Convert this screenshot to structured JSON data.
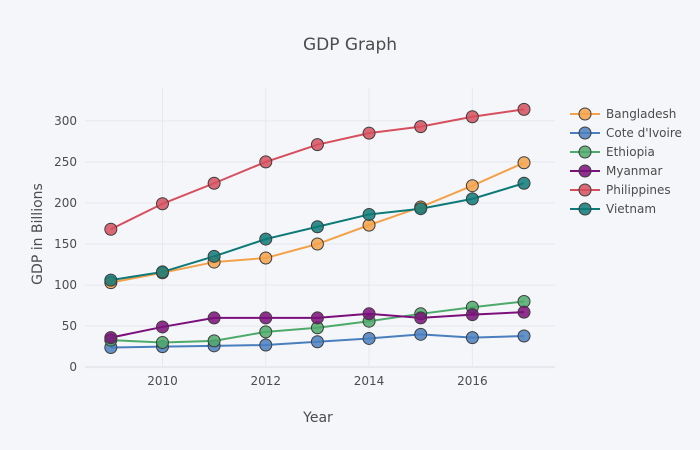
{
  "chart_data": {
    "type": "line",
    "title": "GDP Graph",
    "xlabel": "Year",
    "ylabel": "GDP in Billions",
    "xlim": [
      2008.5,
      2017.6
    ],
    "ylim": [
      -1,
      340
    ],
    "x_ticks": [
      2010,
      2012,
      2014,
      2016
    ],
    "y_ticks": [
      0,
      50,
      100,
      150,
      200,
      250,
      300
    ],
    "grid": true,
    "legend_position": "top-right",
    "x": [
      2009,
      2010,
      2011,
      2012,
      2013,
      2014,
      2015,
      2016,
      2017
    ],
    "series": [
      {
        "name": "Bangladesh",
        "color": "#f4a24a",
        "values": [
          103,
          115,
          128,
          133,
          150,
          173,
          195,
          221,
          249
        ]
      },
      {
        "name": "Cote d'Ivoire",
        "color": "#4a7fbf",
        "values": [
          24,
          25,
          26,
          27,
          31,
          35,
          40,
          36,
          38
        ]
      },
      {
        "name": "Ethiopia",
        "color": "#4daa6a",
        "values": [
          33,
          30,
          32,
          43,
          48,
          56,
          65,
          73,
          80
        ]
      },
      {
        "name": "Myanmar",
        "color": "#7b0f7b",
        "values": [
          36,
          49,
          60,
          60,
          60,
          65,
          60,
          64,
          67
        ]
      },
      {
        "name": "Philippines",
        "color": "#d64f5e",
        "values": [
          168,
          199,
          224,
          250,
          271,
          285,
          293,
          305,
          314
        ]
      },
      {
        "name": "Vietnam",
        "color": "#0e7a78",
        "values": [
          106,
          116,
          135,
          156,
          171,
          186,
          193,
          205,
          224
        ]
      }
    ]
  }
}
